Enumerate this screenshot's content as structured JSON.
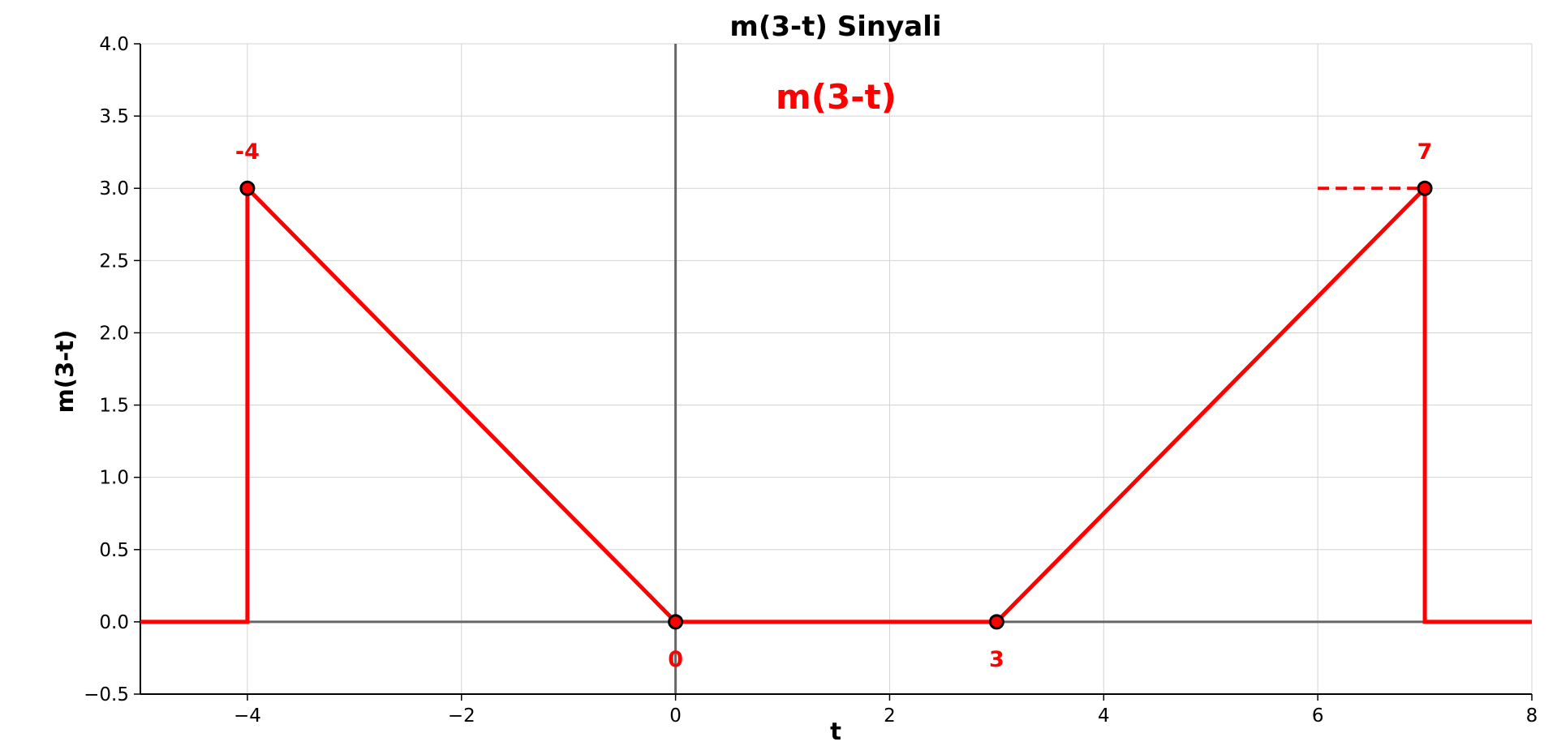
{
  "chart_data": {
    "type": "line",
    "title": "m(3-t) Sinyali",
    "xlabel": "t",
    "ylabel": "m(3-t)",
    "xlim": [
      -5,
      8
    ],
    "ylim": [
      -0.5,
      4.0
    ],
    "grid": true,
    "x_ticks": [
      -4,
      -2,
      0,
      2,
      4,
      6,
      8
    ],
    "x_tick_labels": [
      "−4",
      "−2",
      "0",
      "2",
      "4",
      "6",
      "8"
    ],
    "y_ticks": [
      -0.5,
      0.0,
      0.5,
      1.0,
      1.5,
      2.0,
      2.5,
      3.0,
      3.5,
      4.0
    ],
    "y_tick_labels": [
      "−0.5",
      "0.0",
      "0.5",
      "1.0",
      "1.5",
      "2.0",
      "2.5",
      "3.0",
      "3.5",
      "4.0"
    ],
    "series": [
      {
        "color": "#ff0000",
        "x": [
          -5,
          -4,
          -4,
          0,
          3,
          7,
          7,
          8
        ],
        "y": [
          0,
          0,
          3,
          0,
          0,
          3,
          0,
          0
        ]
      }
    ],
    "reference_lines": [
      {
        "x": [
          6,
          7
        ],
        "y": [
          3,
          3
        ],
        "style": "dashed",
        "color": "#ff0000"
      }
    ],
    "markers": [
      {
        "x": -4,
        "y": 3,
        "label": "-4",
        "label_position": "above"
      },
      {
        "x": 0,
        "y": 0,
        "label": "0",
        "label_position": "below"
      },
      {
        "x": 3,
        "y": 0,
        "label": "3",
        "label_position": "below"
      },
      {
        "x": 7,
        "y": 3,
        "label": "7",
        "label_position": "above"
      }
    ],
    "annotation": {
      "text": "m(3-t)",
      "x": 1.5,
      "y": 3.55,
      "color": "#ff0000"
    },
    "colors": {
      "signal": "#ff0000",
      "marker_edge": "#000000",
      "axis_zero": "#666666",
      "grid": "#d3d3d3"
    }
  }
}
